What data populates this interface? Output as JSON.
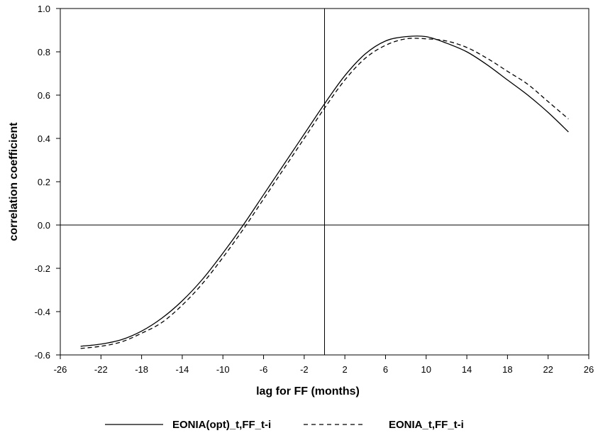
{
  "chart_data": {
    "type": "line",
    "xlabel": "lag for FF (months)",
    "ylabel": "correlation coefficient",
    "xlim": [
      -26,
      26
    ],
    "ylim": [
      -0.6,
      1.0
    ],
    "xticks": [
      -26,
      -22,
      -18,
      -14,
      -10,
      -6,
      -2,
      2,
      6,
      10,
      14,
      18,
      22,
      26
    ],
    "yticks": [
      -0.6,
      -0.4,
      -0.2,
      0.0,
      0.2,
      0.4,
      0.6,
      0.8,
      1.0
    ],
    "ytick_labels": [
      "-0.6",
      "-0.4",
      "-0.2",
      "0.0",
      "0.2",
      "0.4",
      "0.6",
      "0.8",
      "1.0"
    ],
    "reference_lines": {
      "x": 0,
      "y": 0
    },
    "legend_position": "bottom",
    "series": [
      {
        "name": "EONIA(opt)_t,FF_t-i",
        "style": "solid",
        "color": "#000000",
        "x": [
          -24,
          -22,
          -20,
          -18,
          -16,
          -14,
          -12,
          -10,
          -8,
          -6,
          -4,
          -2,
          0,
          2,
          4,
          6,
          8,
          10,
          12,
          14,
          16,
          18,
          20,
          22,
          24
        ],
        "y": [
          -0.56,
          -0.55,
          -0.53,
          -0.49,
          -0.43,
          -0.35,
          -0.25,
          -0.13,
          0.0,
          0.14,
          0.28,
          0.42,
          0.56,
          0.69,
          0.79,
          0.85,
          0.87,
          0.87,
          0.84,
          0.8,
          0.74,
          0.67,
          0.6,
          0.52,
          0.43
        ]
      },
      {
        "name": "EONIA_t,FF_t-i",
        "style": "dashed",
        "color": "#000000",
        "x": [
          -24,
          -22,
          -20,
          -18,
          -16,
          -14,
          -12,
          -10,
          -8,
          -6,
          -4,
          -2,
          0,
          2,
          4,
          6,
          8,
          10,
          12,
          14,
          16,
          18,
          20,
          22,
          24
        ],
        "y": [
          -0.57,
          -0.56,
          -0.54,
          -0.5,
          -0.45,
          -0.37,
          -0.27,
          -0.15,
          -0.02,
          0.12,
          0.26,
          0.4,
          0.54,
          0.67,
          0.77,
          0.83,
          0.86,
          0.86,
          0.85,
          0.82,
          0.77,
          0.71,
          0.65,
          0.57,
          0.49
        ]
      }
    ]
  }
}
